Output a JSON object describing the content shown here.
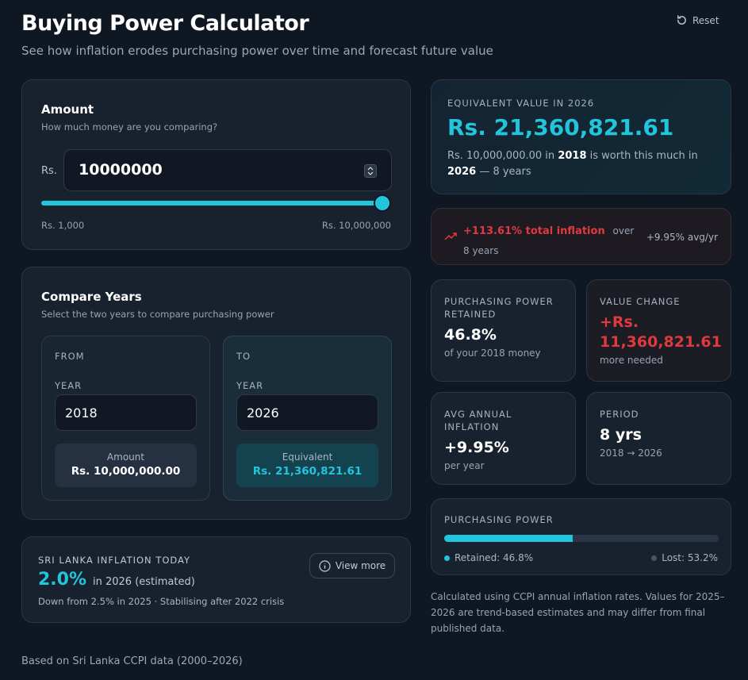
{
  "header": {
    "title": "Buying Power Calculator",
    "subtitle": "See how inflation erodes purchasing power over time and forecast future value",
    "reset": "Reset"
  },
  "amount": {
    "title": "Amount",
    "subtitle": "How much money are you comparing?",
    "currency": "Rs.",
    "value": 10000000,
    "min": 1000,
    "max": 10000000,
    "min_label": "Rs. 1,000",
    "max_label": "Rs. 10,000,000"
  },
  "compare": {
    "title": "Compare Years",
    "subtitle": "Select the two years to compare purchasing power",
    "from": {
      "label": "FROM",
      "year_label": "YEAR",
      "year": "2018",
      "summary_label": "Amount",
      "summary_value": "Rs. 10,000,000.00"
    },
    "to": {
      "label": "TO",
      "year_label": "YEAR",
      "year": "2026",
      "summary_label": "Equivalent",
      "summary_value": "Rs. 21,360,821.61"
    }
  },
  "inflation_today": {
    "label": "SRI LANKA INFLATION TODAY",
    "rate": "2.0%",
    "note": "in 2026 (estimated)",
    "detail": "Down from 2.5% in 2025 · Stabilising after 2022 crisis",
    "button": "View more"
  },
  "equivalent": {
    "label": "EQUIVALENT VALUE IN 2026",
    "value": "Rs. 21,360,821.61",
    "description": [
      "Rs. 10,000,000.00 in",
      "2018",
      "is worth this much in",
      "2026",
      "— 8 years"
    ]
  },
  "total_inflation": {
    "headline": "+113.61% total inflation",
    "period": "over 8 years",
    "avg": "+9.95% avg/yr"
  },
  "stats": [
    {
      "label": "PURCHASING POWER RETAINED",
      "value": "46.8%",
      "note": "of your 2018 money"
    },
    {
      "label": "VALUE CHANGE",
      "value": "+Rs. 11,360,821.61",
      "note": "more needed"
    },
    {
      "label": "AVG ANNUAL INFLATION",
      "value": "+9.95%",
      "note": "per year"
    },
    {
      "label": "PERIOD",
      "value": "8 yrs",
      "note": "2018 → 2026"
    }
  ],
  "purchasing_power": {
    "label": "PURCHASING POWER",
    "retained": 46.8,
    "retained_label": "Retained: 46.8%",
    "lost_label": "Lost: 53.2%"
  },
  "disclaimer": "Calculated using CCPI annual inflation rates. Values for 2025–2026 are trend-based estimates and may differ from final published data.",
  "footer": "Based on Sri Lanka CCPI data (2000–2026)"
}
